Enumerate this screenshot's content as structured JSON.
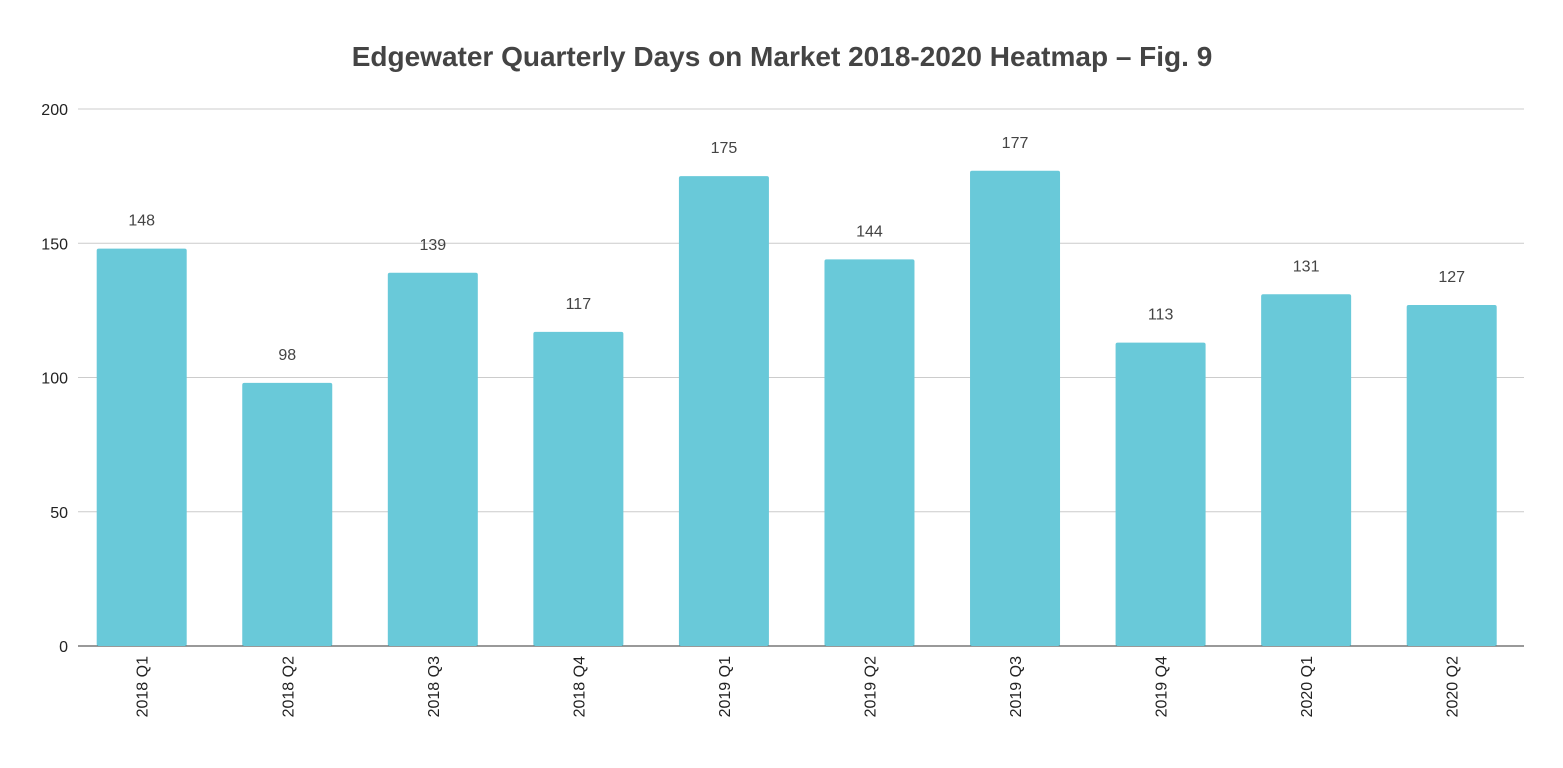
{
  "chart_data": {
    "type": "bar",
    "title": "Edgewater Quarterly Days on Market 2018-2020 Heatmap – Fig. 9",
    "xlabel": "",
    "ylabel": "",
    "categories": [
      "2018 Q1",
      "2018 Q2",
      "2018 Q3",
      "2018 Q4",
      "2019 Q1",
      "2019 Q2",
      "2019 Q3",
      "2019 Q4",
      "2020 Q1",
      "2020 Q2"
    ],
    "values": [
      148,
      98,
      139,
      117,
      175,
      144,
      177,
      113,
      131,
      127
    ],
    "ylim": [
      0,
      200
    ],
    "yticks": [
      0,
      50,
      100,
      150,
      200
    ],
    "grid": true,
    "data_labels": true,
    "legend": "none",
    "colors": {
      "bar": "#69c9d9",
      "title": "#444444",
      "grid": "#cccccc",
      "axis": "#333333"
    }
  }
}
